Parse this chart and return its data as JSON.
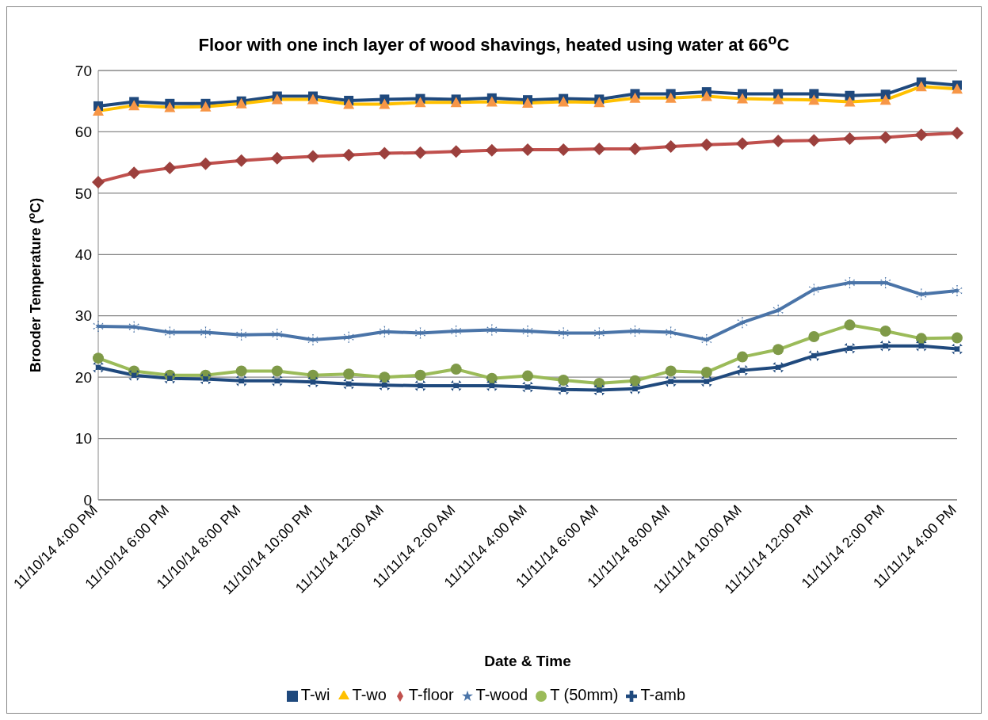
{
  "chart_data": {
    "type": "line",
    "title": "Floor with one inch layer of wood shavings, heated using water at 66$^{o}$C",
    "xlabel": "Date & Time",
    "ylabel": "Brooder Temperature ($^{o}$C)",
    "categories": [
      "11/10/14 4:00 PM",
      null,
      "11/10/14 6:00 PM",
      null,
      "11/10/14 8:00 PM",
      null,
      "11/10/14 10:00 PM",
      null,
      "11/11/14 12:00 AM",
      null,
      "11/11/14 2:00 AM",
      null,
      "11/11/14 4:00 AM",
      null,
      "11/11/14 6:00 AM",
      null,
      "11/11/14 8:00 AM",
      null,
      "11/11/14 10:00 AM",
      null,
      "11/11/14 12:00 PM",
      null,
      "11/11/14 2:00 PM",
      null,
      "11/11/14 4:00 PM"
    ],
    "series": [
      {
        "name": "T-wi",
        "color": "#1f497d",
        "marker": "square",
        "values": [
          64.2,
          64.9,
          64.6,
          64.6,
          65,
          65.8,
          65.8,
          65.1,
          65.3,
          65.4,
          65.3,
          65.5,
          65.2,
          65.4,
          65.3,
          66.2,
          66.2,
          66.5,
          66.2,
          66.2,
          66.2,
          65.9,
          66.1,
          68.1,
          67.6
        ]
      },
      {
        "name": "T-wo",
        "color": "#ffc000",
        "marker": "triangle",
        "values": [
          63.4,
          64.3,
          64.0,
          64.1,
          64.6,
          65.3,
          65.3,
          64.5,
          64.5,
          64.8,
          64.8,
          64.9,
          64.7,
          64.9,
          64.8,
          65.5,
          65.5,
          65.8,
          65.4,
          65.3,
          65.2,
          64.9,
          65.2,
          67.4,
          67.0
        ]
      },
      {
        "name": "T-floor",
        "color": "#c0504d",
        "marker": "diamond",
        "values": [
          51.8,
          53.3,
          54.1,
          54.8,
          55.3,
          55.7,
          56.0,
          56.2,
          56.5,
          56.6,
          56.8,
          57.0,
          57.1,
          57.1,
          57.2,
          57.2,
          57.6,
          57.9,
          58.1,
          58.5,
          58.6,
          58.9,
          59.1,
          59.5,
          59.8
        ]
      },
      {
        "name": "T-wood",
        "color": "#4a74a8",
        "marker": "star",
        "values": [
          28.3,
          28.2,
          27.3,
          27.3,
          26.9,
          27.0,
          26.1,
          26.5,
          27.4,
          27.2,
          27.5,
          27.7,
          27.5,
          27.2,
          27.2,
          27.5,
          27.3,
          26.1,
          28.9,
          30.9,
          34.3,
          35.4,
          35.4,
          33.5,
          34.1
        ]
      },
      {
        "name": "T (50mm)",
        "color": "#9bbb59",
        "marker": "circle",
        "values": [
          23.1,
          21.0,
          20.3,
          20.3,
          21.0,
          21.0,
          20.3,
          20.5,
          20.0,
          20.3,
          21.3,
          19.8,
          20.2,
          19.5,
          19.0,
          19.4,
          21.0,
          20.8,
          23.3,
          24.5,
          26.6,
          28.5,
          27.5,
          26.3,
          26.4
        ]
      },
      {
        "name": "T-amb",
        "color": "#1f497d",
        "marker": "cross",
        "values": [
          21.6,
          20.3,
          19.8,
          19.7,
          19.4,
          19.4,
          19.2,
          18.9,
          18.7,
          18.6,
          18.6,
          18.6,
          18.4,
          18.0,
          17.9,
          18.1,
          19.3,
          19.3,
          21.1,
          21.6,
          23.5,
          24.7,
          25.1,
          25.1,
          24.6
        ]
      }
    ],
    "ylim": [
      0,
      70
    ],
    "yticks": [
      0,
      10,
      20,
      30,
      40,
      50,
      60,
      70
    ],
    "grid": "y",
    "legend": "bottom",
    "line_style": "solid"
  }
}
